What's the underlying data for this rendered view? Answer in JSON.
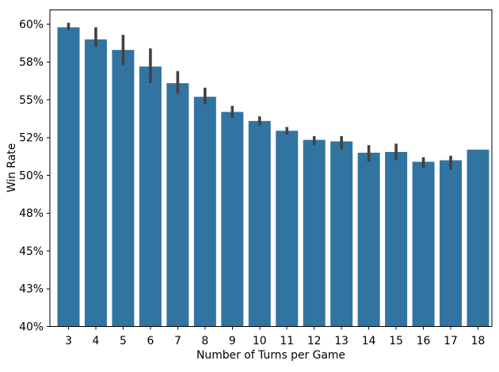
{
  "figure": {
    "background": "#ffffff"
  },
  "chart_data": {
    "type": "bar",
    "title": "",
    "xlabel": "Number of Turns per Game",
    "ylabel": "Win Rate",
    "categories": [
      "3",
      "4",
      "5",
      "6",
      "7",
      "8",
      "9",
      "10",
      "11",
      "12",
      "13",
      "14",
      "15",
      "16",
      "17",
      "18"
    ],
    "values": [
      59.8,
      59.0,
      58.3,
      57.2,
      56.1,
      55.2,
      54.2,
      53.6,
      52.95,
      52.35,
      52.25,
      51.5,
      51.55,
      50.9,
      51.0,
      51.7
    ],
    "error_intervals": [
      [
        59.6,
        60.1
      ],
      [
        58.5,
        59.8
      ],
      [
        57.3,
        59.3
      ],
      [
        56.1,
        58.4
      ],
      [
        55.4,
        56.9
      ],
      [
        54.7,
        55.8
      ],
      [
        53.8,
        54.6
      ],
      [
        53.3,
        53.9
      ],
      [
        52.7,
        53.2
      ],
      [
        52.0,
        52.6
      ],
      [
        51.7,
        52.6
      ],
      [
        50.9,
        52.0
      ],
      [
        51.0,
        52.1
      ],
      [
        50.5,
        51.2
      ],
      [
        50.4,
        51.3
      ],
      null
    ],
    "ylim": [
      40,
      60.95
    ],
    "yticks": {
      "values": [
        40,
        42.5,
        45,
        47.5,
        50,
        52.5,
        55,
        57.5,
        60
      ],
      "labels": [
        "40%",
        "43%",
        "45%",
        "48%",
        "50%",
        "52%",
        "55%",
        "58%",
        "60%"
      ]
    },
    "grid": false,
    "legend": null,
    "bar_color": "#3274a1",
    "error_bar_color": "#424242",
    "axis_color": "#000000",
    "text_color": "#000000"
  }
}
